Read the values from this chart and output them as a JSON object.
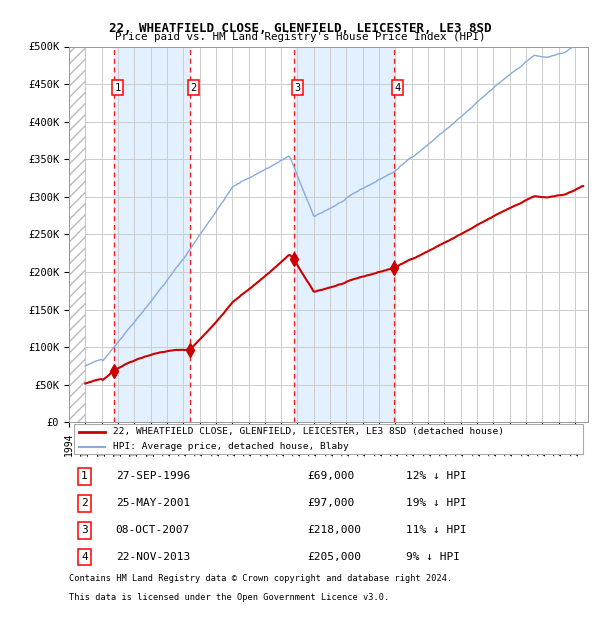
{
  "title1": "22, WHEATFIELD CLOSE, GLENFIELD, LEICESTER, LE3 8SD",
  "title2": "Price paid vs. HM Land Registry's House Price Index (HPI)",
  "ylim": [
    0,
    500000
  ],
  "yticks": [
    0,
    50000,
    100000,
    150000,
    200000,
    250000,
    300000,
    350000,
    400000,
    450000,
    500000
  ],
  "ytick_labels": [
    "£0",
    "£50K",
    "£100K",
    "£150K",
    "£200K",
    "£250K",
    "£300K",
    "£350K",
    "£400K",
    "£450K",
    "£500K"
  ],
  "xlim_start": 1994.0,
  "xlim_end": 2025.8,
  "bg_color": "#ffffff",
  "grid_color": "#cccccc",
  "sale_color": "#cc0000",
  "hpi_color": "#88aadd",
  "shade_color": "#ddeeff",
  "hatch_color": "#dddddd",
  "transactions": [
    {
      "num": 1,
      "date_x": 1996.74,
      "price": 69000,
      "pct": "12%",
      "label": "27-SEP-1996",
      "price_label": "£69,000"
    },
    {
      "num": 2,
      "date_x": 2001.4,
      "price": 97000,
      "pct": "19%",
      "label": "25-MAY-2001",
      "price_label": "£97,000"
    },
    {
      "num": 3,
      "date_x": 2007.77,
      "price": 218000,
      "pct": "11%",
      "label": "08-OCT-2007",
      "price_label": "£218,000"
    },
    {
      "num": 4,
      "date_x": 2013.9,
      "price": 205000,
      "pct": "9%",
      "label": "22-NOV-2013",
      "price_label": "£205,000"
    }
  ],
  "legend1": "22, WHEATFIELD CLOSE, GLENFIELD, LEICESTER, LE3 8SD (detached house)",
  "legend2": "HPI: Average price, detached house, Blaby",
  "footnote1": "Contains HM Land Registry data © Crown copyright and database right 2024.",
  "footnote2": "This data is licensed under the Open Government Licence v3.0."
}
